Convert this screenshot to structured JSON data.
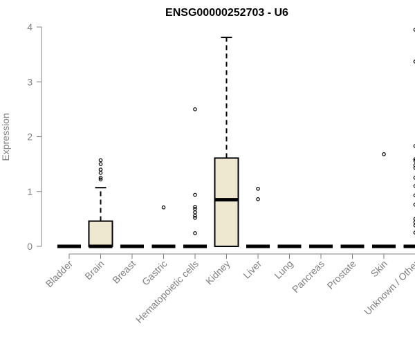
{
  "chart_data": {
    "type": "boxplot",
    "title": "ENSG00000252703 - U6",
    "xlabel": "",
    "ylabel": "Expression",
    "ylim": [
      0,
      4
    ],
    "yticks": [
      0,
      1,
      2,
      3,
      4
    ],
    "categories": [
      "Bladder",
      "Brain",
      "Breast",
      "Gastric",
      "Hematopoietic cells",
      "Kidney",
      "Liver",
      "Lung",
      "Pancreas",
      "Prostate",
      "Skin",
      "Unknown / Other"
    ],
    "boxes": [
      {
        "name": "Bladder",
        "min": 0,
        "q1": 0,
        "median": 0,
        "q3": 0,
        "max": 0,
        "outliers": []
      },
      {
        "name": "Brain",
        "min": 0,
        "q1": 0,
        "median": 0,
        "q3": 0.46,
        "max": 1.07,
        "outliers": [
          1.22,
          1.25,
          1.34,
          1.4,
          1.5,
          1.57
        ]
      },
      {
        "name": "Breast",
        "min": 0,
        "q1": 0,
        "median": 0,
        "q3": 0,
        "max": 0,
        "outliers": []
      },
      {
        "name": "Gastric",
        "min": 0,
        "q1": 0,
        "median": 0,
        "q3": 0,
        "max": 0,
        "outliers": [
          0.71
        ]
      },
      {
        "name": "Hematopoietic cells",
        "min": 0,
        "q1": 0,
        "median": 0,
        "q3": 0,
        "max": 0,
        "outliers": [
          0.24,
          0.52,
          0.56,
          0.62,
          0.68,
          0.72,
          0.94,
          2.5
        ]
      },
      {
        "name": "Kidney",
        "min": 0,
        "q1": 0,
        "median": 0.85,
        "q3": 1.61,
        "max": 3.81,
        "outliers": []
      },
      {
        "name": "Liver",
        "min": 0,
        "q1": 0,
        "median": 0,
        "q3": 0,
        "max": 0,
        "outliers": [
          0.86,
          1.05
        ]
      },
      {
        "name": "Lung",
        "min": 0,
        "q1": 0,
        "median": 0,
        "q3": 0,
        "max": 0,
        "outliers": []
      },
      {
        "name": "Pancreas",
        "min": 0,
        "q1": 0,
        "median": 0,
        "q3": 0,
        "max": 0,
        "outliers": []
      },
      {
        "name": "Prostate",
        "min": 0,
        "q1": 0,
        "median": 0,
        "q3": 0,
        "max": 0,
        "outliers": []
      },
      {
        "name": "Skin",
        "min": 0,
        "q1": 0,
        "median": 0,
        "q3": 0,
        "max": 0,
        "outliers": [
          1.68
        ]
      },
      {
        "name": "Unknown / Other",
        "min": 0,
        "q1": 0,
        "median": 0,
        "q3": 0,
        "max": 0,
        "outliers": [
          0.25,
          0.38,
          0.44,
          0.5,
          0.76,
          0.93,
          1.1,
          1.25,
          1.43,
          1.48,
          1.56,
          1.59,
          1.83,
          3.37,
          3.95
        ]
      }
    ],
    "box_fill": "#EEE8D0",
    "grid": false,
    "legend": "none"
  }
}
